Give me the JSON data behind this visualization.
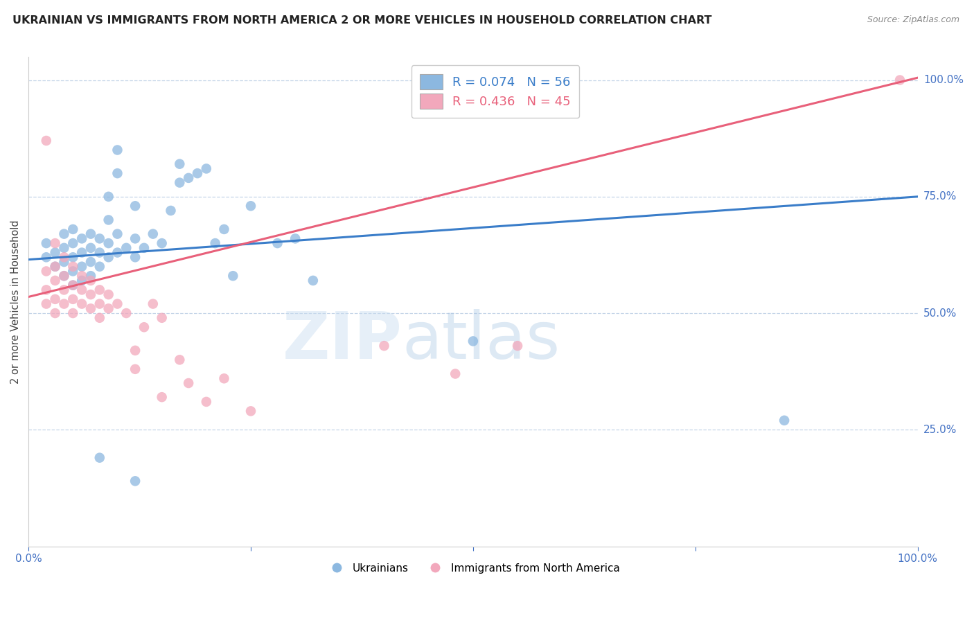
{
  "title": "UKRAINIAN VS IMMIGRANTS FROM NORTH AMERICA 2 OR MORE VEHICLES IN HOUSEHOLD CORRELATION CHART",
  "source": "Source: ZipAtlas.com",
  "ylabel": "2 or more Vehicles in Household",
  "xmin": 0.0,
  "xmax": 1.0,
  "ymin": 0.0,
  "ymax": 1.05,
  "xticks": [
    0.0,
    0.25,
    0.5,
    0.75,
    1.0
  ],
  "xticklabels": [
    "0.0%",
    "",
    "",
    "",
    "100.0%"
  ],
  "yticks": [
    0.25,
    0.5,
    0.75,
    1.0
  ],
  "yticklabels": [
    "25.0%",
    "50.0%",
    "75.0%",
    "100.0%"
  ],
  "blue_color": "#8cb8e0",
  "pink_color": "#f2a8bc",
  "blue_line_color": "#3a7dc9",
  "pink_line_color": "#e8607a",
  "R_blue": 0.074,
  "N_blue": 56,
  "R_pink": 0.436,
  "N_pink": 45,
  "legend_label_blue": "Ukrainians",
  "legend_label_pink": "Immigrants from North America",
  "watermark_zip": "ZIP",
  "watermark_atlas": "atlas",
  "tick_color": "#4472c4",
  "blue_line_x": [
    0.0,
    1.0
  ],
  "blue_line_y": [
    0.615,
    0.75
  ],
  "pink_line_x": [
    0.0,
    1.0
  ],
  "pink_line_y": [
    0.535,
    1.005
  ],
  "blue_scatter": [
    [
      0.02,
      0.62
    ],
    [
      0.02,
      0.65
    ],
    [
      0.03,
      0.6
    ],
    [
      0.03,
      0.63
    ],
    [
      0.04,
      0.58
    ],
    [
      0.04,
      0.61
    ],
    [
      0.04,
      0.64
    ],
    [
      0.04,
      0.67
    ],
    [
      0.05,
      0.56
    ],
    [
      0.05,
      0.59
    ],
    [
      0.05,
      0.62
    ],
    [
      0.05,
      0.65
    ],
    [
      0.05,
      0.68
    ],
    [
      0.06,
      0.57
    ],
    [
      0.06,
      0.6
    ],
    [
      0.06,
      0.63
    ],
    [
      0.06,
      0.66
    ],
    [
      0.07,
      0.58
    ],
    [
      0.07,
      0.61
    ],
    [
      0.07,
      0.64
    ],
    [
      0.07,
      0.67
    ],
    [
      0.08,
      0.6
    ],
    [
      0.08,
      0.63
    ],
    [
      0.08,
      0.66
    ],
    [
      0.09,
      0.62
    ],
    [
      0.09,
      0.65
    ],
    [
      0.09,
      0.7
    ],
    [
      0.09,
      0.75
    ],
    [
      0.1,
      0.63
    ],
    [
      0.1,
      0.67
    ],
    [
      0.1,
      0.8
    ],
    [
      0.1,
      0.85
    ],
    [
      0.11,
      0.64
    ],
    [
      0.12,
      0.62
    ],
    [
      0.12,
      0.66
    ],
    [
      0.12,
      0.73
    ],
    [
      0.13,
      0.64
    ],
    [
      0.14,
      0.67
    ],
    [
      0.15,
      0.65
    ],
    [
      0.16,
      0.72
    ],
    [
      0.17,
      0.78
    ],
    [
      0.17,
      0.82
    ],
    [
      0.18,
      0.79
    ],
    [
      0.19,
      0.8
    ],
    [
      0.2,
      0.81
    ],
    [
      0.21,
      0.65
    ],
    [
      0.22,
      0.68
    ],
    [
      0.23,
      0.58
    ],
    [
      0.25,
      0.73
    ],
    [
      0.28,
      0.65
    ],
    [
      0.3,
      0.66
    ],
    [
      0.32,
      0.57
    ],
    [
      0.08,
      0.19
    ],
    [
      0.12,
      0.14
    ],
    [
      0.85,
      0.27
    ],
    [
      0.5,
      0.44
    ]
  ],
  "pink_scatter": [
    [
      0.02,
      0.87
    ],
    [
      0.02,
      0.59
    ],
    [
      0.02,
      0.55
    ],
    [
      0.02,
      0.52
    ],
    [
      0.03,
      0.65
    ],
    [
      0.03,
      0.6
    ],
    [
      0.03,
      0.57
    ],
    [
      0.03,
      0.53
    ],
    [
      0.03,
      0.5
    ],
    [
      0.04,
      0.62
    ],
    [
      0.04,
      0.58
    ],
    [
      0.04,
      0.55
    ],
    [
      0.04,
      0.52
    ],
    [
      0.05,
      0.6
    ],
    [
      0.05,
      0.56
    ],
    [
      0.05,
      0.53
    ],
    [
      0.05,
      0.5
    ],
    [
      0.06,
      0.58
    ],
    [
      0.06,
      0.55
    ],
    [
      0.06,
      0.52
    ],
    [
      0.07,
      0.57
    ],
    [
      0.07,
      0.54
    ],
    [
      0.07,
      0.51
    ],
    [
      0.08,
      0.55
    ],
    [
      0.08,
      0.52
    ],
    [
      0.08,
      0.49
    ],
    [
      0.09,
      0.54
    ],
    [
      0.09,
      0.51
    ],
    [
      0.1,
      0.52
    ],
    [
      0.11,
      0.5
    ],
    [
      0.12,
      0.42
    ],
    [
      0.12,
      0.38
    ],
    [
      0.13,
      0.47
    ],
    [
      0.14,
      0.52
    ],
    [
      0.15,
      0.49
    ],
    [
      0.15,
      0.32
    ],
    [
      0.17,
      0.4
    ],
    [
      0.18,
      0.35
    ],
    [
      0.2,
      0.31
    ],
    [
      0.22,
      0.36
    ],
    [
      0.25,
      0.29
    ],
    [
      0.4,
      0.43
    ],
    [
      0.48,
      0.37
    ],
    [
      0.55,
      0.43
    ],
    [
      0.98,
      1.0
    ]
  ]
}
